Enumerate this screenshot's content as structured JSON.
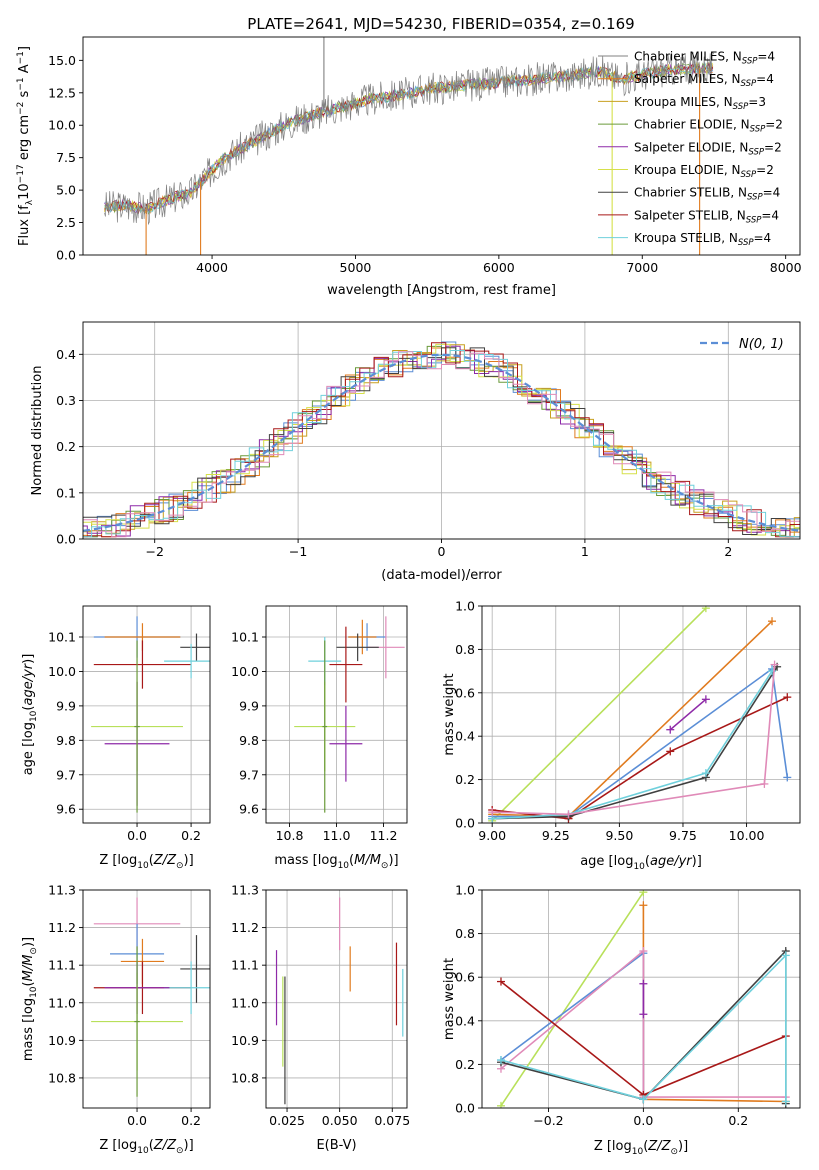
{
  "figure": {
    "title": "PLATE=2641, MJD=54230, FIBERID=0354, z=0.169"
  },
  "colors": {
    "chabrier_miles": "#5b8ed6",
    "salpeter_miles": "#e07b1f",
    "kroupa_miles": "#c8a020",
    "chabrier_elodie": "#6a9a3a",
    "salpeter_elodie": "#8e2aa8",
    "kroupa_elodie": "#d6e04a",
    "chabrier_stelib": "#404040",
    "salpeter_stelib": "#a81818",
    "kroupa_stelib": "#6fd0dc",
    "pink": "#e08ab8",
    "lime": "#b8e05a",
    "gaussian": "#5b8ed6",
    "spectrum_data": "#808080",
    "grid": "#b0b0b0"
  },
  "chart_data": [
    {
      "id": "spectrum",
      "type": "line",
      "xlabel": "wavelength [Angstrom, rest frame]",
      "ylabel_parts": [
        "Flux [f",
        "λ",
        "10",
        "−17",
        " erg cm",
        "−2",
        " s",
        "−1",
        " A",
        "−1",
        "]"
      ],
      "xlim": [
        3100,
        8100
      ],
      "ylim": [
        0,
        16.8
      ],
      "xticks": [
        4000,
        5000,
        6000,
        7000,
        8000
      ],
      "yticks": [
        0.0,
        2.5,
        5.0,
        7.5,
        10.0,
        12.5,
        15.0
      ],
      "ytick_labels": [
        "0.0",
        "2.5",
        "5.0",
        "7.5",
        "10.0",
        "12.5",
        "15.0"
      ],
      "grid": false,
      "legend_position": "top-right",
      "legend": [
        {
          "label": "Chabrier MILES, N",
          "sub": "SSP",
          "tail": "=4",
          "color_key": "spectrum_data"
        },
        {
          "label": "Salpeter MILES, N",
          "sub": "SSP",
          "tail": "=4",
          "color_key": "salpeter_miles"
        },
        {
          "label": "Kroupa MILES, N",
          "sub": "SSP",
          "tail": "=3",
          "color_key": "kroupa_miles"
        },
        {
          "label": "Chabrier ELODIE, N",
          "sub": "SSP",
          "tail": "=2",
          "color_key": "chabrier_elodie"
        },
        {
          "label": "Salpeter ELODIE, N",
          "sub": "SSP",
          "tail": "=2",
          "color_key": "salpeter_elodie"
        },
        {
          "label": "Kroupa ELODIE, N",
          "sub": "SSP",
          "tail": "=2",
          "color_key": "kroupa_elodie"
        },
        {
          "label": "Chabrier STELIB, N",
          "sub": "SSP",
          "tail": "=4",
          "color_key": "chabrier_stelib"
        },
        {
          "label": "Salpeter STELIB, N",
          "sub": "SSP",
          "tail": "=4",
          "color_key": "salpeter_stelib"
        },
        {
          "label": "Kroupa STELIB, N",
          "sub": "SSP",
          "tail": "=4",
          "color_key": "kroupa_stelib"
        }
      ],
      "continuum": [
        [
          3250,
          3.7
        ],
        [
          3400,
          3.8
        ],
        [
          3550,
          3.6
        ],
        [
          3700,
          4.3
        ],
        [
          3850,
          4.8
        ],
        [
          3950,
          6.0
        ],
        [
          4100,
          7.6
        ],
        [
          4300,
          8.8
        ],
        [
          4500,
          10.0
        ],
        [
          4700,
          10.8
        ],
        [
          4900,
          11.4
        ],
        [
          5100,
          12.0
        ],
        [
          5300,
          12.3
        ],
        [
          5500,
          12.8
        ],
        [
          5700,
          13.0
        ],
        [
          5900,
          13.2
        ],
        [
          6100,
          13.4
        ],
        [
          6300,
          13.6
        ],
        [
          6500,
          13.8
        ],
        [
          6700,
          14.2
        ],
        [
          6850,
          13.5
        ],
        [
          7000,
          13.9
        ],
        [
          7200,
          14.3
        ],
        [
          7500,
          14.4
        ]
      ],
      "spikes": [
        {
          "x": 3540,
          "y": 0.0,
          "color_key": "salpeter_miles"
        },
        {
          "x": 3920,
          "y": 0.0,
          "color_key": "salpeter_miles"
        },
        {
          "x": 4780,
          "y": 16.8,
          "color_key": "spectrum_data"
        },
        {
          "x": 6790,
          "y": 0.0,
          "color_key": "kroupa_elodie"
        },
        {
          "x": 7400,
          "y": 0.0,
          "color_key": "salpeter_miles"
        }
      ]
    },
    {
      "id": "residuals",
      "type": "line",
      "xlabel": "(data-model)/error",
      "ylabel": "Normed distribution",
      "xlim": [
        -2.5,
        2.5
      ],
      "ylim": [
        0,
        0.47
      ],
      "xticks": [
        -2,
        -1,
        0,
        1,
        2
      ],
      "xtick_labels": [
        "−2",
        "−1",
        "0",
        "1",
        "2"
      ],
      "yticks": [
        0.0,
        0.1,
        0.2,
        0.3,
        0.4
      ],
      "ytick_labels": [
        "0.0",
        "0.1",
        "0.2",
        "0.3",
        "0.4"
      ],
      "grid": true,
      "legend_position": "top-right",
      "legend_label": "N(0, 1)",
      "bin_width": 0.1,
      "mean": 0,
      "sigma": 1
    },
    {
      "id": "age_vs_Z",
      "type": "scatter",
      "xlabel": "Z [log10(Z/Z⊙)]",
      "ylabel": "age  [log10(age/yr)]",
      "xlim": [
        -0.2,
        0.27
      ],
      "ylim": [
        9.56,
        10.19
      ],
      "xticks": [
        0.0,
        0.2
      ],
      "xtick_labels": [
        "0.0",
        "0.2"
      ],
      "yticks": [
        9.6,
        9.7,
        9.8,
        9.9,
        10.0,
        10.1
      ],
      "ytick_labels": [
        "9.6",
        "9.7",
        "9.8",
        "9.9",
        "10.0",
        "10.1"
      ],
      "grid": true,
      "points": [
        {
          "x": 0.0,
          "y": 10.1,
          "xerr": 0.16,
          "yerr": 0.06,
          "color_key": "chabrier_miles"
        },
        {
          "x": 0.02,
          "y": 10.1,
          "xerr": 0.14,
          "yerr": 0.04,
          "color_key": "salpeter_miles"
        },
        {
          "x": 0.22,
          "y": 10.07,
          "xerr": 0.06,
          "yerr": 0.04,
          "color_key": "chabrier_stelib"
        },
        {
          "x": 0.02,
          "y": 10.02,
          "xerr": 0.18,
          "yerr": 0.07,
          "color_key": "salpeter_stelib"
        },
        {
          "x": 0.2,
          "y": 10.03,
          "xerr": 0.1,
          "yerr": 0.05,
          "color_key": "kroupa_stelib"
        },
        {
          "x": 0.0,
          "y": 9.84,
          "xerr": 0.17,
          "yerr": 0.13,
          "color_key": "lime"
        },
        {
          "x": 0.0,
          "y": 9.79,
          "xerr": 0.12,
          "yerr": 0.18,
          "color_key": "salpeter_elodie"
        },
        {
          "x": 0.0,
          "y": 9.84,
          "xerr": 0.01,
          "yerr": 0.25,
          "color_key": "chabrier_elodie"
        }
      ]
    },
    {
      "id": "age_vs_mass",
      "type": "scatter",
      "xlabel": "mass [log10(M/M⊙)]",
      "xlim": [
        10.7,
        11.3
      ],
      "ylim": [
        9.56,
        10.19
      ],
      "xticks": [
        10.8,
        11.0,
        11.2
      ],
      "xtick_labels": [
        "10.8",
        "11.0",
        "11.2"
      ],
      "yticks": [
        9.6,
        9.7,
        9.8,
        9.9,
        10.0,
        10.1
      ],
      "ytick_labels": [
        "9.6",
        "9.7",
        "9.8",
        "9.9",
        "10.0",
        "10.1"
      ],
      "grid": true,
      "points": [
        {
          "x": 11.13,
          "y": 10.1,
          "xerr": 0.08,
          "yerr": 0.04,
          "color_key": "chabrier_miles"
        },
        {
          "x": 11.11,
          "y": 10.1,
          "xerr": 0.06,
          "yerr": 0.05,
          "color_key": "salpeter_miles"
        },
        {
          "x": 11.21,
          "y": 10.07,
          "xerr": 0.08,
          "yerr": 0.09,
          "color_key": "pink"
        },
        {
          "x": 11.09,
          "y": 10.07,
          "xerr": 0.09,
          "yerr": 0.04,
          "color_key": "chabrier_stelib"
        },
        {
          "x": 11.04,
          "y": 10.02,
          "xerr": 0.07,
          "yerr": 0.11,
          "color_key": "salpeter_stelib"
        },
        {
          "x": 10.95,
          "y": 10.03,
          "xerr": 0.07,
          "yerr": 0.07,
          "color_key": "kroupa_stelib"
        },
        {
          "x": 10.95,
          "y": 9.84,
          "xerr": 0.13,
          "yerr": 0.13,
          "color_key": "lime"
        },
        {
          "x": 11.04,
          "y": 9.79,
          "xerr": 0.07,
          "yerr": 0.11,
          "color_key": "salpeter_elodie"
        },
        {
          "x": 10.95,
          "y": 9.84,
          "xerr": 0.01,
          "yerr": 0.25,
          "color_key": "chabrier_elodie"
        }
      ]
    },
    {
      "id": "massweight_vs_age",
      "type": "line",
      "xlabel": "age  [log10(age/yr)]",
      "ylabel": "mass weight",
      "xlim": [
        8.96,
        10.21
      ],
      "ylim": [
        0,
        1.0
      ],
      "xticks": [
        9.0,
        9.25,
        9.5,
        9.75,
        10.0
      ],
      "xtick_labels": [
        "9.00",
        "9.25",
        "9.50",
        "9.75",
        "10.00"
      ],
      "yticks": [
        0.0,
        0.2,
        0.4,
        0.6,
        0.8,
        1.0
      ],
      "ytick_labels": [
        "0.0",
        "0.2",
        "0.4",
        "0.6",
        "0.8",
        "1.0"
      ],
      "grid": true,
      "series": [
        {
          "color_key": "lime",
          "x": [
            9.0,
            9.84
          ],
          "y": [
            0.01,
            0.99
          ]
        },
        {
          "color_key": "salpeter_miles",
          "x": [
            9.0,
            9.3,
            10.1
          ],
          "y": [
            0.04,
            0.03,
            0.93
          ]
        },
        {
          "color_key": "chabrier_miles",
          "x": [
            9.0,
            9.3,
            10.1,
            10.16
          ],
          "y": [
            0.03,
            0.03,
            0.71,
            0.21
          ]
        },
        {
          "color_key": "salpeter_stelib",
          "x": [
            9.0,
            9.3,
            9.7,
            10.16
          ],
          "y": [
            0.06,
            0.02,
            0.33,
            0.58
          ]
        },
        {
          "color_key": "salpeter_elodie",
          "x": [
            9.7,
            9.84
          ],
          "y": [
            0.43,
            0.57
          ]
        },
        {
          "color_key": "chabrier_stelib",
          "x": [
            9.0,
            9.3,
            9.84,
            10.12
          ],
          "y": [
            0.02,
            0.03,
            0.21,
            0.72
          ]
        },
        {
          "color_key": "kroupa_stelib",
          "x": [
            9.0,
            9.3,
            9.84,
            10.1
          ],
          "y": [
            0.02,
            0.04,
            0.23,
            0.7
          ]
        },
        {
          "color_key": "pink",
          "x": [
            9.0,
            9.3,
            10.07,
            10.11
          ],
          "y": [
            0.05,
            0.04,
            0.18,
            0.73
          ]
        }
      ]
    },
    {
      "id": "mass_vs_Z",
      "type": "scatter",
      "xlabel": "Z [log10(Z/Z⊙)]",
      "ylabel": "mass [log10(M/M⊙)]",
      "xlim": [
        -0.2,
        0.27
      ],
      "ylim": [
        10.72,
        11.3
      ],
      "xticks": [
        0.0,
        0.2
      ],
      "xtick_labels": [
        "0.0",
        "0.2"
      ],
      "yticks": [
        10.8,
        10.9,
        11.0,
        11.1,
        11.2,
        11.3
      ],
      "ytick_labels": [
        "10.8",
        "10.9",
        "11.0",
        "11.1",
        "11.2",
        "11.3"
      ],
      "grid": true,
      "points": [
        {
          "x": 0.0,
          "y": 11.21,
          "xerr": 0.16,
          "yerr": 0.07,
          "color_key": "pink"
        },
        {
          "x": 0.0,
          "y": 11.13,
          "xerr": 0.1,
          "yerr": 0.08,
          "color_key": "chabrier_miles"
        },
        {
          "x": 0.02,
          "y": 11.11,
          "xerr": 0.08,
          "yerr": 0.06,
          "color_key": "salpeter_miles"
        },
        {
          "x": 0.22,
          "y": 11.09,
          "xerr": 0.06,
          "yerr": 0.09,
          "color_key": "chabrier_stelib"
        },
        {
          "x": 0.02,
          "y": 11.04,
          "xerr": 0.18,
          "yerr": 0.07,
          "color_key": "salpeter_stelib"
        },
        {
          "x": 0.2,
          "y": 11.04,
          "xerr": 0.1,
          "yerr": 0.07,
          "color_key": "kroupa_stelib"
        },
        {
          "x": 0.0,
          "y": 11.04,
          "xerr": 0.12,
          "yerr": 0.07,
          "color_key": "salpeter_elodie"
        },
        {
          "x": 0.0,
          "y": 10.95,
          "xerr": 0.17,
          "yerr": 0.13,
          "color_key": "lime"
        },
        {
          "x": 0.0,
          "y": 10.95,
          "xerr": 0.01,
          "yerr": 0.2,
          "color_key": "chabrier_elodie"
        }
      ]
    },
    {
      "id": "mass_vs_ebv",
      "type": "scatter",
      "xlabel": "E(B-V)",
      "xlim": [
        0.015,
        0.082
      ],
      "ylim": [
        10.72,
        11.3
      ],
      "xticks": [
        0.025,
        0.05,
        0.075
      ],
      "xtick_labels": [
        "0.025",
        "0.050",
        "0.075"
      ],
      "yticks": [
        10.8,
        10.9,
        11.0,
        11.1,
        11.2,
        11.3
      ],
      "ytick_labels": [
        "10.8",
        "10.9",
        "11.0",
        "11.1",
        "11.2",
        "11.3"
      ],
      "grid": true,
      "points": [
        {
          "x": 0.02,
          "y": 11.04,
          "xerr": 0.0,
          "yerr": 0.1,
          "color_key": "salpeter_elodie"
        },
        {
          "x": 0.023,
          "y": 10.95,
          "xerr": 0.0,
          "yerr": 0.12,
          "color_key": "lime"
        },
        {
          "x": 0.024,
          "y": 10.9,
          "xerr": 0.0,
          "yerr": 0.17,
          "color_key": "chabrier_stelib"
        },
        {
          "x": 0.05,
          "y": 11.21,
          "xerr": 0.0,
          "yerr": 0.07,
          "color_key": "pink"
        },
        {
          "x": 0.055,
          "y": 11.09,
          "xerr": 0.0,
          "yerr": 0.06,
          "color_key": "salpeter_miles"
        },
        {
          "x": 0.077,
          "y": 11.05,
          "xerr": 0.0,
          "yerr": 0.11,
          "color_key": "salpeter_stelib"
        },
        {
          "x": 0.08,
          "y": 11.0,
          "xerr": 0.0,
          "yerr": 0.09,
          "color_key": "kroupa_stelib"
        }
      ]
    },
    {
      "id": "massweight_vs_Z",
      "type": "line",
      "xlabel": "Z [log10(Z/Z⊙)]",
      "ylabel": "mass weight",
      "xlim": [
        -0.34,
        0.33
      ],
      "ylim": [
        0,
        1.0
      ],
      "xticks": [
        -0.2,
        0.0,
        0.2
      ],
      "xtick_labels": [
        "−0.2",
        "0.0",
        "0.2"
      ],
      "yticks": [
        0.0,
        0.2,
        0.4,
        0.6,
        0.8,
        1.0
      ],
      "ytick_labels": [
        "0.0",
        "0.2",
        "0.4",
        "0.6",
        "0.8",
        "1.0"
      ],
      "grid": true,
      "series": [
        {
          "color_key": "lime",
          "x": [
            -0.3,
            0.0
          ],
          "y": [
            0.01,
            0.99
          ]
        },
        {
          "color_key": "salpeter_miles",
          "x": [
            0.0,
            0.0,
            0.3
          ],
          "y": [
            0.93,
            0.04,
            0.03
          ]
        },
        {
          "color_key": "chabrier_miles",
          "x": [
            -0.3,
            0.0,
            0.0
          ],
          "y": [
            0.22,
            0.71,
            0.04
          ]
        },
        {
          "color_key": "pink",
          "x": [
            -0.3,
            0.0,
            0.0,
            0.3
          ],
          "y": [
            0.18,
            0.72,
            0.05,
            0.05
          ]
        },
        {
          "color_key": "salpeter_stelib",
          "x": [
            -0.3,
            0.0,
            0.3
          ],
          "y": [
            0.58,
            0.06,
            0.33
          ]
        },
        {
          "color_key": "salpeter_elodie",
          "x": [
            0.0,
            0.0
          ],
          "y": [
            0.43,
            0.57
          ]
        },
        {
          "color_key": "chabrier_stelib",
          "x": [
            -0.3,
            0.0,
            0.3,
            0.3
          ],
          "y": [
            0.21,
            0.04,
            0.72,
            0.02
          ]
        },
        {
          "color_key": "kroupa_stelib",
          "x": [
            -0.3,
            0.0,
            0.3,
            0.3
          ],
          "y": [
            0.22,
            0.04,
            0.7,
            0.03
          ]
        }
      ]
    }
  ]
}
